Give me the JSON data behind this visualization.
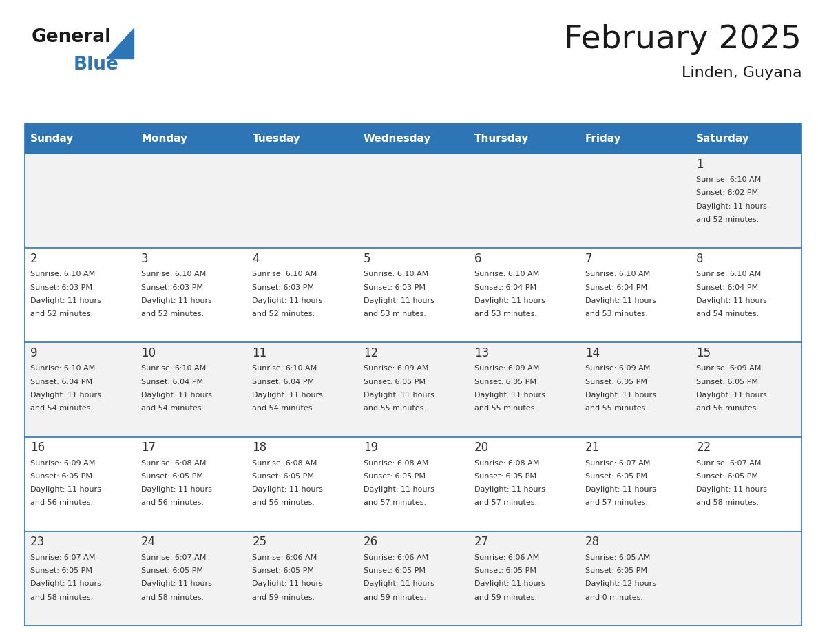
{
  "title": "February 2025",
  "subtitle": "Linden, Guyana",
  "days_of_week": [
    "Sunday",
    "Monday",
    "Tuesday",
    "Wednesday",
    "Thursday",
    "Friday",
    "Saturday"
  ],
  "header_bg": "#2E75B6",
  "header_text": "#FFFFFF",
  "row_bg_odd": "#F2F2F2",
  "row_bg_even": "#FFFFFF",
  "cell_border": "#2E75B6",
  "day_num_color": "#333333",
  "info_text_color": "#333333",
  "title_color": "#1A1A1A",
  "logo_general_color": "#1A1A1A",
  "logo_blue_color": "#2E75B6",
  "weeks": [
    [
      {
        "day": null,
        "sunrise": null,
        "sunset": null,
        "daylight_line1": null,
        "daylight_line2": null
      },
      {
        "day": null,
        "sunrise": null,
        "sunset": null,
        "daylight_line1": null,
        "daylight_line2": null
      },
      {
        "day": null,
        "sunrise": null,
        "sunset": null,
        "daylight_line1": null,
        "daylight_line2": null
      },
      {
        "day": null,
        "sunrise": null,
        "sunset": null,
        "daylight_line1": null,
        "daylight_line2": null
      },
      {
        "day": null,
        "sunrise": null,
        "sunset": null,
        "daylight_line1": null,
        "daylight_line2": null
      },
      {
        "day": null,
        "sunrise": null,
        "sunset": null,
        "daylight_line1": null,
        "daylight_line2": null
      },
      {
        "day": 1,
        "sunrise": "6:10 AM",
        "sunset": "6:02 PM",
        "daylight_line1": "Daylight: 11 hours",
        "daylight_line2": "and 52 minutes."
      }
    ],
    [
      {
        "day": 2,
        "sunrise": "6:10 AM",
        "sunset": "6:03 PM",
        "daylight_line1": "Daylight: 11 hours",
        "daylight_line2": "and 52 minutes."
      },
      {
        "day": 3,
        "sunrise": "6:10 AM",
        "sunset": "6:03 PM",
        "daylight_line1": "Daylight: 11 hours",
        "daylight_line2": "and 52 minutes."
      },
      {
        "day": 4,
        "sunrise": "6:10 AM",
        "sunset": "6:03 PM",
        "daylight_line1": "Daylight: 11 hours",
        "daylight_line2": "and 52 minutes."
      },
      {
        "day": 5,
        "sunrise": "6:10 AM",
        "sunset": "6:03 PM",
        "daylight_line1": "Daylight: 11 hours",
        "daylight_line2": "and 53 minutes."
      },
      {
        "day": 6,
        "sunrise": "6:10 AM",
        "sunset": "6:04 PM",
        "daylight_line1": "Daylight: 11 hours",
        "daylight_line2": "and 53 minutes."
      },
      {
        "day": 7,
        "sunrise": "6:10 AM",
        "sunset": "6:04 PM",
        "daylight_line1": "Daylight: 11 hours",
        "daylight_line2": "and 53 minutes."
      },
      {
        "day": 8,
        "sunrise": "6:10 AM",
        "sunset": "6:04 PM",
        "daylight_line1": "Daylight: 11 hours",
        "daylight_line2": "and 54 minutes."
      }
    ],
    [
      {
        "day": 9,
        "sunrise": "6:10 AM",
        "sunset": "6:04 PM",
        "daylight_line1": "Daylight: 11 hours",
        "daylight_line2": "and 54 minutes."
      },
      {
        "day": 10,
        "sunrise": "6:10 AM",
        "sunset": "6:04 PM",
        "daylight_line1": "Daylight: 11 hours",
        "daylight_line2": "and 54 minutes."
      },
      {
        "day": 11,
        "sunrise": "6:10 AM",
        "sunset": "6:04 PM",
        "daylight_line1": "Daylight: 11 hours",
        "daylight_line2": "and 54 minutes."
      },
      {
        "day": 12,
        "sunrise": "6:09 AM",
        "sunset": "6:05 PM",
        "daylight_line1": "Daylight: 11 hours",
        "daylight_line2": "and 55 minutes."
      },
      {
        "day": 13,
        "sunrise": "6:09 AM",
        "sunset": "6:05 PM",
        "daylight_line1": "Daylight: 11 hours",
        "daylight_line2": "and 55 minutes."
      },
      {
        "day": 14,
        "sunrise": "6:09 AM",
        "sunset": "6:05 PM",
        "daylight_line1": "Daylight: 11 hours",
        "daylight_line2": "and 55 minutes."
      },
      {
        "day": 15,
        "sunrise": "6:09 AM",
        "sunset": "6:05 PM",
        "daylight_line1": "Daylight: 11 hours",
        "daylight_line2": "and 56 minutes."
      }
    ],
    [
      {
        "day": 16,
        "sunrise": "6:09 AM",
        "sunset": "6:05 PM",
        "daylight_line1": "Daylight: 11 hours",
        "daylight_line2": "and 56 minutes."
      },
      {
        "day": 17,
        "sunrise": "6:08 AM",
        "sunset": "6:05 PM",
        "daylight_line1": "Daylight: 11 hours",
        "daylight_line2": "and 56 minutes."
      },
      {
        "day": 18,
        "sunrise": "6:08 AM",
        "sunset": "6:05 PM",
        "daylight_line1": "Daylight: 11 hours",
        "daylight_line2": "and 56 minutes."
      },
      {
        "day": 19,
        "sunrise": "6:08 AM",
        "sunset": "6:05 PM",
        "daylight_line1": "Daylight: 11 hours",
        "daylight_line2": "and 57 minutes."
      },
      {
        "day": 20,
        "sunrise": "6:08 AM",
        "sunset": "6:05 PM",
        "daylight_line1": "Daylight: 11 hours",
        "daylight_line2": "and 57 minutes."
      },
      {
        "day": 21,
        "sunrise": "6:07 AM",
        "sunset": "6:05 PM",
        "daylight_line1": "Daylight: 11 hours",
        "daylight_line2": "and 57 minutes."
      },
      {
        "day": 22,
        "sunrise": "6:07 AM",
        "sunset": "6:05 PM",
        "daylight_line1": "Daylight: 11 hours",
        "daylight_line2": "and 58 minutes."
      }
    ],
    [
      {
        "day": 23,
        "sunrise": "6:07 AM",
        "sunset": "6:05 PM",
        "daylight_line1": "Daylight: 11 hours",
        "daylight_line2": "and 58 minutes."
      },
      {
        "day": 24,
        "sunrise": "6:07 AM",
        "sunset": "6:05 PM",
        "daylight_line1": "Daylight: 11 hours",
        "daylight_line2": "and 58 minutes."
      },
      {
        "day": 25,
        "sunrise": "6:06 AM",
        "sunset": "6:05 PM",
        "daylight_line1": "Daylight: 11 hours",
        "daylight_line2": "and 59 minutes."
      },
      {
        "day": 26,
        "sunrise": "6:06 AM",
        "sunset": "6:05 PM",
        "daylight_line1": "Daylight: 11 hours",
        "daylight_line2": "and 59 minutes."
      },
      {
        "day": 27,
        "sunrise": "6:06 AM",
        "sunset": "6:05 PM",
        "daylight_line1": "Daylight: 11 hours",
        "daylight_line2": "and 59 minutes."
      },
      {
        "day": 28,
        "sunrise": "6:05 AM",
        "sunset": "6:05 PM",
        "daylight_line1": "Daylight: 12 hours",
        "daylight_line2": "and 0 minutes."
      },
      {
        "day": null,
        "sunrise": null,
        "sunset": null,
        "daylight_line1": null,
        "daylight_line2": null
      }
    ]
  ]
}
